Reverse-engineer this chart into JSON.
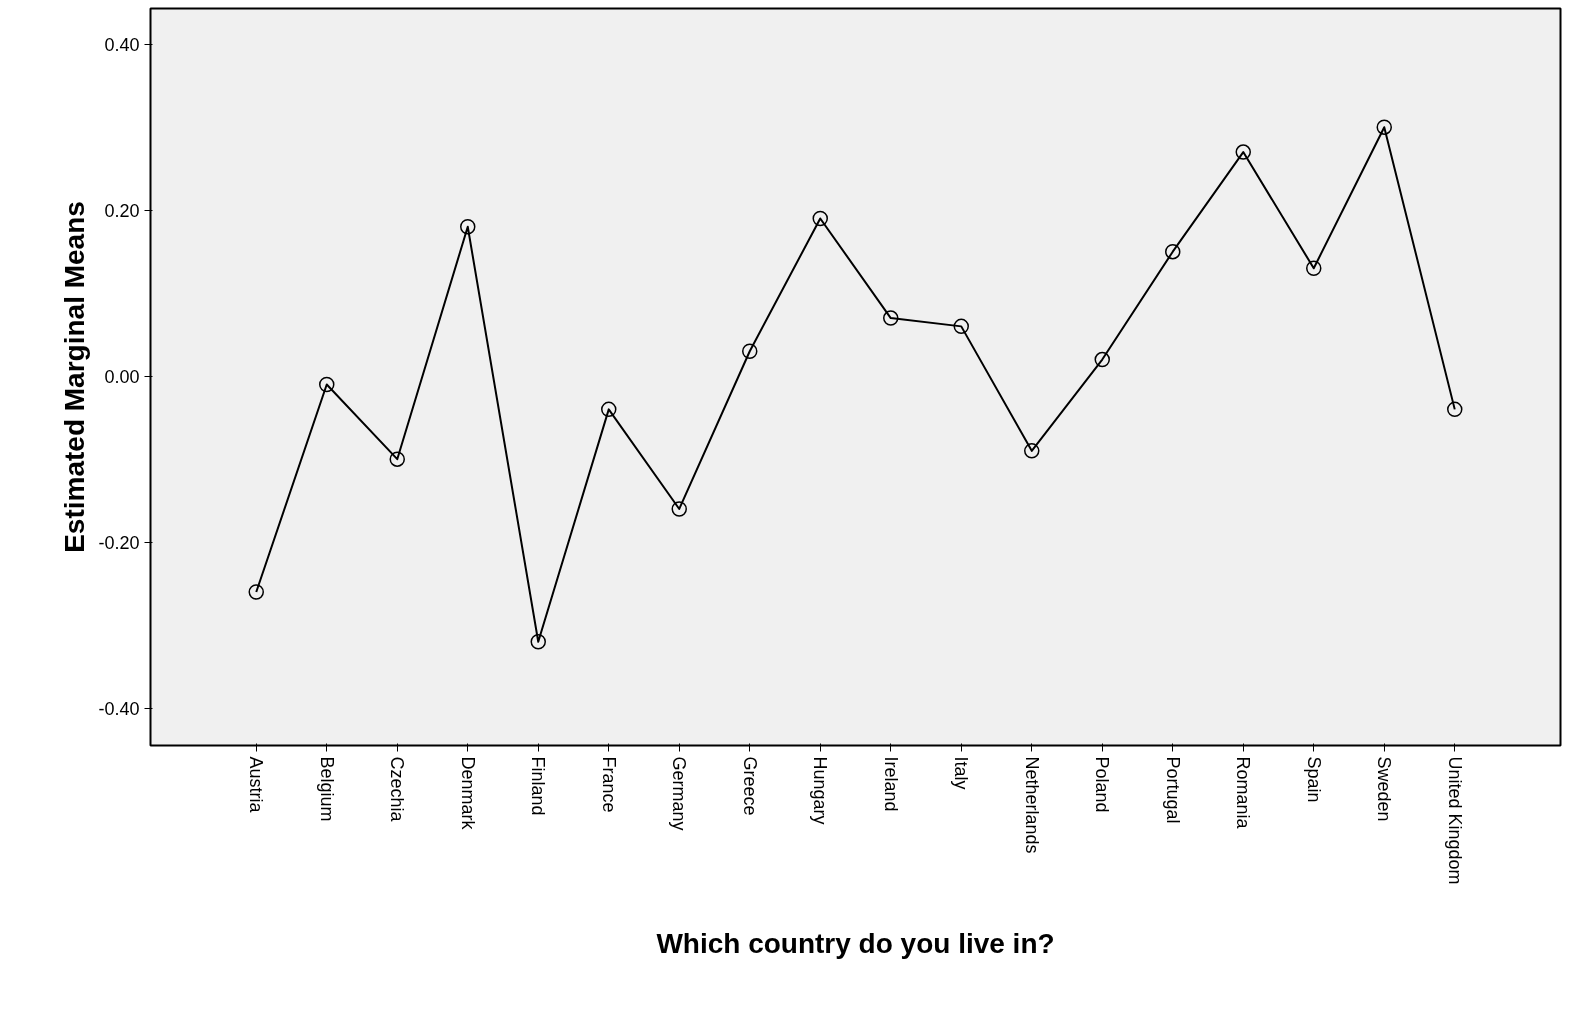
{
  "chart_data": {
    "type": "line",
    "xlabel": "Which country do you live in?",
    "ylabel": "Estimated Marginal Means",
    "categories": [
      "Austria",
      "Belgium",
      "Czechia",
      "Denmark",
      "Finland",
      "France",
      "Germany",
      "Greece",
      "Hungary",
      "Ireland",
      "Italy",
      "Netherlands",
      "Poland",
      "Portugal",
      "Romania",
      "Spain",
      "Sweden",
      "United Kingdom"
    ],
    "series": [
      {
        "color": "#000000",
        "values": [
          -0.26,
          -0.01,
          -0.1,
          0.18,
          -0.32,
          -0.04,
          -0.16,
          0.03,
          0.19,
          0.07,
          0.06,
          -0.09,
          0.02,
          0.15,
          0.27,
          0.13,
          0.3,
          -0.04
        ]
      }
    ],
    "ylim": [
      -0.445,
      0.443
    ],
    "yticks": [
      {
        "value": -0.4,
        "label": "-0.40"
      },
      {
        "value": -0.2,
        "label": "-0.20"
      },
      {
        "value": 0,
        "label": "0.00"
      },
      {
        "value": 0.2,
        "label": "0.20"
      },
      {
        "value": 0.4,
        "label": "0.40"
      }
    ],
    "grid": false,
    "marker": "circle",
    "line_style": "solid"
  }
}
